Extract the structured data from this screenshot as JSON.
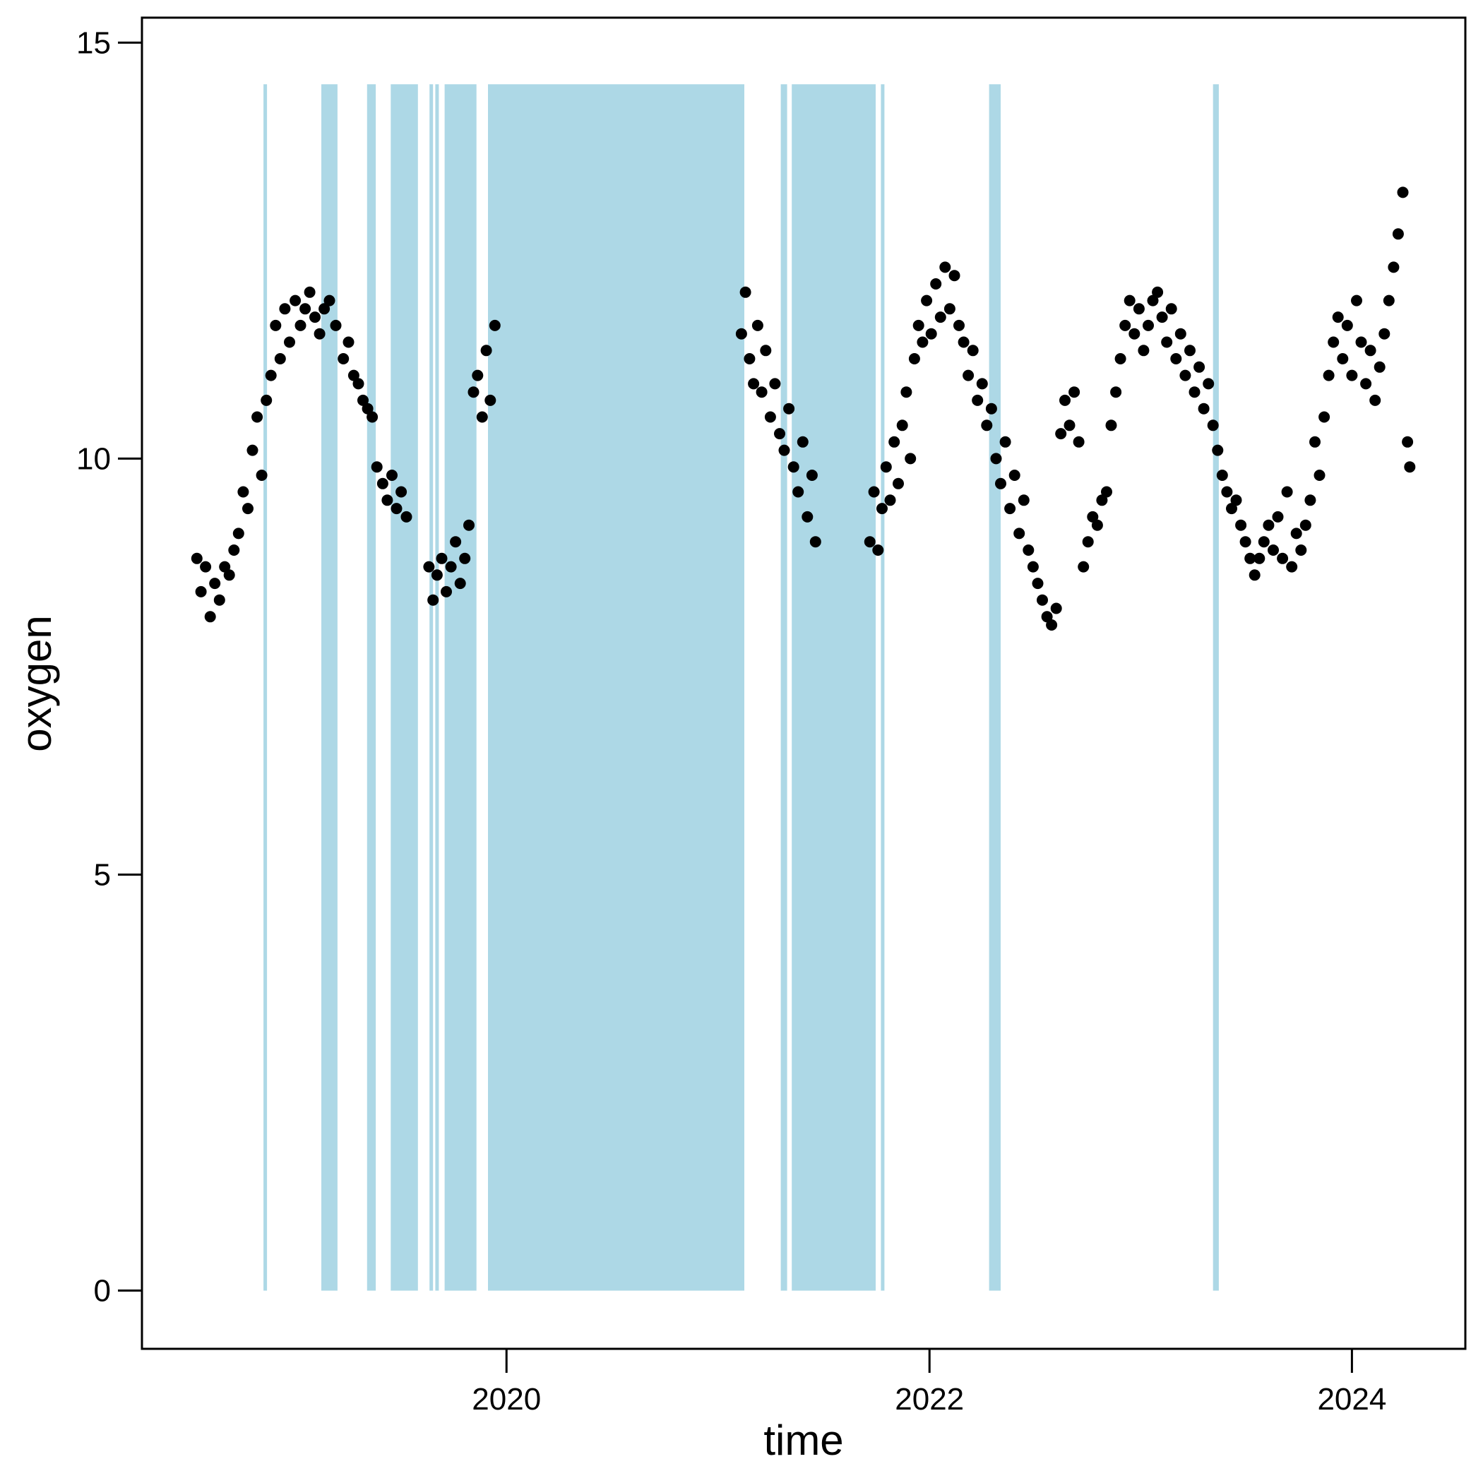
{
  "chart_data": {
    "type": "scatter",
    "title": "",
    "xlabel": "time",
    "ylabel": "oxygen",
    "xlim": [
      "2018-04-11",
      "2024-07-15"
    ],
    "ylim": [
      -0.7,
      15.3
    ],
    "grid": false,
    "legend": "none",
    "x_ticks": [
      {
        "value": "2020-01-01",
        "label": "2020"
      },
      {
        "value": "2022-01-01",
        "label": "2022"
      },
      {
        "value": "2024-01-01",
        "label": "2024"
      }
    ],
    "y_ticks": [
      {
        "value": 0,
        "label": "0"
      },
      {
        "value": 5,
        "label": "5"
      },
      {
        "value": 10,
        "label": "10"
      },
      {
        "value": 15,
        "label": "15"
      }
    ],
    "shaded_intervals": {
      "color": "#add8e6",
      "y_range": [
        0,
        14.5
      ],
      "intervals": [
        [
          "2018-11-07",
          "2018-11-12"
        ],
        [
          "2019-02-15",
          "2019-03-15"
        ],
        [
          "2019-05-05",
          "2019-05-20"
        ],
        [
          "2019-06-15",
          "2019-08-01"
        ],
        [
          "2019-08-21",
          "2019-08-27"
        ],
        [
          "2019-08-31",
          "2019-09-04"
        ],
        [
          "2019-09-16",
          "2019-11-10"
        ],
        [
          "2019-11-30",
          "2021-02-15"
        ],
        [
          "2021-04-19",
          "2021-04-30"
        ],
        [
          "2021-05-08",
          "2021-09-30"
        ],
        [
          "2021-10-09",
          "2021-10-14"
        ],
        [
          "2022-04-14",
          "2022-05-04"
        ],
        [
          "2023-05-06",
          "2023-05-16"
        ]
      ]
    },
    "series": [
      {
        "color": "#000000",
        "points": [
          [
            "2018-07-15",
            8.8
          ],
          [
            "2018-07-22",
            8.4
          ],
          [
            "2018-07-30",
            8.7
          ],
          [
            "2018-08-07",
            8.1
          ],
          [
            "2018-08-15",
            8.5
          ],
          [
            "2018-08-23",
            8.3
          ],
          [
            "2018-09-01",
            8.7
          ],
          [
            "2018-09-09",
            8.6
          ],
          [
            "2018-09-17",
            8.9
          ],
          [
            "2018-09-25",
            9.1
          ],
          [
            "2018-10-03",
            9.6
          ],
          [
            "2018-10-11",
            9.4
          ],
          [
            "2018-10-19",
            10.1
          ],
          [
            "2018-10-27",
            10.5
          ],
          [
            "2018-11-04",
            9.8
          ],
          [
            "2018-11-12",
            10.7
          ],
          [
            "2018-11-20",
            11.0
          ],
          [
            "2018-11-28",
            11.6
          ],
          [
            "2018-12-06",
            11.2
          ],
          [
            "2018-12-14",
            11.8
          ],
          [
            "2018-12-22",
            11.4
          ],
          [
            "2019-01-01",
            11.9
          ],
          [
            "2019-01-10",
            11.6
          ],
          [
            "2019-01-18",
            11.8
          ],
          [
            "2019-01-26",
            12.0
          ],
          [
            "2019-02-04",
            11.7
          ],
          [
            "2019-02-12",
            11.5
          ],
          [
            "2019-02-20",
            11.8
          ],
          [
            "2019-03-01",
            11.9
          ],
          [
            "2019-03-12",
            11.6
          ],
          [
            "2019-03-25",
            11.2
          ],
          [
            "2019-04-03",
            11.4
          ],
          [
            "2019-04-12",
            11.0
          ],
          [
            "2019-04-20",
            10.9
          ],
          [
            "2019-04-28",
            10.7
          ],
          [
            "2019-05-06",
            10.6
          ],
          [
            "2019-05-14",
            10.5
          ],
          [
            "2019-05-22",
            9.9
          ],
          [
            "2019-06-01",
            9.7
          ],
          [
            "2019-06-09",
            9.5
          ],
          [
            "2019-06-17",
            9.8
          ],
          [
            "2019-06-25",
            9.4
          ],
          [
            "2019-07-03",
            9.6
          ],
          [
            "2019-07-12",
            9.3
          ],
          [
            "2019-08-20",
            8.7
          ],
          [
            "2019-08-27",
            8.3
          ],
          [
            "2019-09-03",
            8.6
          ],
          [
            "2019-09-11",
            8.8
          ],
          [
            "2019-09-19",
            8.4
          ],
          [
            "2019-09-27",
            8.7
          ],
          [
            "2019-10-05",
            9.0
          ],
          [
            "2019-10-13",
            8.5
          ],
          [
            "2019-10-21",
            8.8
          ],
          [
            "2019-10-28",
            9.2
          ],
          [
            "2019-11-05",
            10.8
          ],
          [
            "2019-11-12",
            11.0
          ],
          [
            "2019-11-20",
            10.5
          ],
          [
            "2019-11-27",
            11.3
          ],
          [
            "2019-12-04",
            10.7
          ],
          [
            "2019-12-12",
            11.6
          ],
          [
            "2021-02-10",
            11.5
          ],
          [
            "2021-02-17",
            12.0
          ],
          [
            "2021-02-24",
            11.2
          ],
          [
            "2021-03-03",
            10.9
          ],
          [
            "2021-03-10",
            11.6
          ],
          [
            "2021-03-17",
            10.8
          ],
          [
            "2021-03-24",
            11.3
          ],
          [
            "2021-04-01",
            10.5
          ],
          [
            "2021-04-09",
            10.9
          ],
          [
            "2021-04-17",
            10.3
          ],
          [
            "2021-04-25",
            10.1
          ],
          [
            "2021-05-03",
            10.6
          ],
          [
            "2021-05-11",
            9.9
          ],
          [
            "2021-05-19",
            9.6
          ],
          [
            "2021-05-27",
            10.2
          ],
          [
            "2021-06-04",
            9.3
          ],
          [
            "2021-06-12",
            9.8
          ],
          [
            "2021-06-18",
            9.0
          ],
          [
            "2021-09-20",
            9.0
          ],
          [
            "2021-09-27",
            9.6
          ],
          [
            "2021-10-04",
            8.9
          ],
          [
            "2021-10-11",
            9.4
          ],
          [
            "2021-10-18",
            9.9
          ],
          [
            "2021-10-25",
            9.5
          ],
          [
            "2021-11-01",
            10.2
          ],
          [
            "2021-11-08",
            9.7
          ],
          [
            "2021-11-15",
            10.4
          ],
          [
            "2021-11-22",
            10.8
          ],
          [
            "2021-11-29",
            10.0
          ],
          [
            "2021-12-06",
            11.2
          ],
          [
            "2021-12-13",
            11.6
          ],
          [
            "2021-12-20",
            11.4
          ],
          [
            "2021-12-27",
            11.9
          ],
          [
            "2022-01-04",
            11.5
          ],
          [
            "2022-01-12",
            12.1
          ],
          [
            "2022-01-20",
            11.7
          ],
          [
            "2022-01-28",
            12.3
          ],
          [
            "2022-02-05",
            11.8
          ],
          [
            "2022-02-13",
            12.2
          ],
          [
            "2022-02-21",
            11.6
          ],
          [
            "2022-03-01",
            11.4
          ],
          [
            "2022-03-09",
            11.0
          ],
          [
            "2022-03-17",
            11.3
          ],
          [
            "2022-03-25",
            10.7
          ],
          [
            "2022-04-02",
            10.9
          ],
          [
            "2022-04-10",
            10.4
          ],
          [
            "2022-04-18",
            10.6
          ],
          [
            "2022-04-26",
            10.0
          ],
          [
            "2022-05-04",
            9.7
          ],
          [
            "2022-05-12",
            10.2
          ],
          [
            "2022-05-20",
            9.4
          ],
          [
            "2022-05-28",
            9.8
          ],
          [
            "2022-06-05",
            9.1
          ],
          [
            "2022-06-13",
            9.5
          ],
          [
            "2022-06-21",
            8.9
          ],
          [
            "2022-06-29",
            8.7
          ],
          [
            "2022-07-07",
            8.5
          ],
          [
            "2022-07-15",
            8.3
          ],
          [
            "2022-07-23",
            8.1
          ],
          [
            "2022-07-31",
            8.0
          ],
          [
            "2022-08-08",
            8.2
          ],
          [
            "2022-08-16",
            10.3
          ],
          [
            "2022-08-23",
            10.7
          ],
          [
            "2022-08-31",
            10.4
          ],
          [
            "2022-09-08",
            10.8
          ],
          [
            "2022-09-16",
            10.2
          ],
          [
            "2022-09-24",
            8.7
          ],
          [
            "2022-10-02",
            9.0
          ],
          [
            "2022-10-10",
            9.3
          ],
          [
            "2022-10-18",
            9.2
          ],
          [
            "2022-10-26",
            9.5
          ],
          [
            "2022-11-03",
            9.6
          ],
          [
            "2022-11-11",
            10.4
          ],
          [
            "2022-11-19",
            10.8
          ],
          [
            "2022-11-27",
            11.2
          ],
          [
            "2022-12-05",
            11.6
          ],
          [
            "2022-12-13",
            11.9
          ],
          [
            "2022-12-21",
            11.5
          ],
          [
            "2022-12-29",
            11.8
          ],
          [
            "2023-01-06",
            11.3
          ],
          [
            "2023-01-14",
            11.6
          ],
          [
            "2023-01-22",
            11.9
          ],
          [
            "2023-01-30",
            12.0
          ],
          [
            "2023-02-07",
            11.7
          ],
          [
            "2023-02-15",
            11.4
          ],
          [
            "2023-02-23",
            11.8
          ],
          [
            "2023-03-03",
            11.2
          ],
          [
            "2023-03-11",
            11.5
          ],
          [
            "2023-03-19",
            11.0
          ],
          [
            "2023-03-27",
            11.3
          ],
          [
            "2023-04-04",
            10.8
          ],
          [
            "2023-04-12",
            11.1
          ],
          [
            "2023-04-20",
            10.6
          ],
          [
            "2023-04-28",
            10.9
          ],
          [
            "2023-05-06",
            10.4
          ],
          [
            "2023-05-14",
            10.1
          ],
          [
            "2023-05-22",
            9.8
          ],
          [
            "2023-05-30",
            9.6
          ],
          [
            "2023-06-07",
            9.4
          ],
          [
            "2023-06-15",
            9.5
          ],
          [
            "2023-06-23",
            9.2
          ],
          [
            "2023-07-01",
            9.0
          ],
          [
            "2023-07-09",
            8.8
          ],
          [
            "2023-07-17",
            8.6
          ],
          [
            "2023-07-25",
            8.8
          ],
          [
            "2023-08-02",
            9.0
          ],
          [
            "2023-08-10",
            9.2
          ],
          [
            "2023-08-18",
            8.9
          ],
          [
            "2023-08-26",
            9.3
          ],
          [
            "2023-09-03",
            8.8
          ],
          [
            "2023-09-11",
            9.6
          ],
          [
            "2023-09-19",
            8.7
          ],
          [
            "2023-09-27",
            9.1
          ],
          [
            "2023-10-05",
            8.9
          ],
          [
            "2023-10-13",
            9.2
          ],
          [
            "2023-10-21",
            9.5
          ],
          [
            "2023-10-29",
            10.2
          ],
          [
            "2023-11-06",
            9.8
          ],
          [
            "2023-11-14",
            10.5
          ],
          [
            "2023-11-22",
            11.0
          ],
          [
            "2023-11-30",
            11.4
          ],
          [
            "2023-12-08",
            11.7
          ],
          [
            "2023-12-16",
            11.2
          ],
          [
            "2023-12-24",
            11.6
          ],
          [
            "2024-01-01",
            11.0
          ],
          [
            "2024-01-09",
            11.9
          ],
          [
            "2024-01-17",
            11.4
          ],
          [
            "2024-01-25",
            10.9
          ],
          [
            "2024-02-02",
            11.3
          ],
          [
            "2024-02-10",
            10.7
          ],
          [
            "2024-02-18",
            11.1
          ],
          [
            "2024-02-26",
            11.5
          ],
          [
            "2024-03-05",
            11.9
          ],
          [
            "2024-03-13",
            12.3
          ],
          [
            "2024-03-21",
            12.7
          ],
          [
            "2024-03-29",
            13.2
          ],
          [
            "2024-04-06",
            10.2
          ],
          [
            "2024-04-10",
            9.9
          ]
        ]
      }
    ]
  }
}
